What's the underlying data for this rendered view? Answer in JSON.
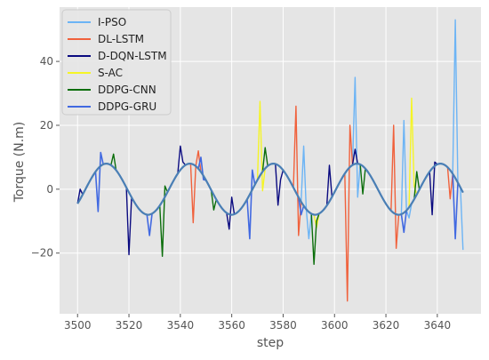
{
  "chart_data": {
    "type": "line",
    "title": "",
    "xlabel": "step",
    "ylabel": "Torque (N.m)",
    "xlim": [
      3493,
      3557
    ],
    "ylim": [
      -39,
      57
    ],
    "x_ticks": [
      "3500",
      "3520",
      "3540",
      "3560",
      "3580",
      "3600",
      "3620",
      "3640"
    ],
    "x_tick_values": [
      3500,
      3520,
      3540,
      3560,
      3580,
      3600,
      3620,
      3640
    ],
    "y_ticks": [
      "−20",
      "0",
      "20",
      "40"
    ],
    "y_tick_values": [
      -20,
      0,
      20,
      40
    ],
    "grid": true,
    "legend_position": "upper-left",
    "background": "#e5e5e5",
    "reference_curve": {
      "description": "sinusoid",
      "amplitude": 8,
      "period": 32.5,
      "x_start": 3500,
      "x_end": 3650,
      "y_at_start": -4.5
    },
    "series": [
      {
        "name": "I-PSO",
        "color": "#6cb4f5",
        "spikes": [
          [
            3588,
            13.5
          ],
          [
            3590,
            -15.5
          ],
          [
            3608,
            35
          ],
          [
            3609,
            -2.5
          ],
          [
            3627,
            21.5
          ],
          [
            3629,
            -9
          ],
          [
            3647,
            53
          ],
          [
            3650,
            -19
          ]
        ]
      },
      {
        "name": "DL-LSTM",
        "color": "#f0613c",
        "spikes": [
          [
            3545,
            -10.5
          ],
          [
            3547,
            12
          ],
          [
            3585,
            26
          ],
          [
            3586,
            -14.5
          ],
          [
            3605,
            -35
          ],
          [
            3606,
            20
          ],
          [
            3623,
            20
          ],
          [
            3624,
            -18.5
          ],
          [
            3645,
            -3
          ]
        ]
      },
      {
        "name": "D-DQN-LSTM",
        "color": "#0a0a80",
        "spikes": [
          [
            3501,
            0
          ],
          [
            3520,
            -20.5
          ],
          [
            3521,
            -3
          ],
          [
            3540,
            13.5
          ],
          [
            3541,
            8.5
          ],
          [
            3559,
            -12.5
          ],
          [
            3560,
            -2.5
          ],
          [
            3578,
            -5
          ],
          [
            3579,
            3
          ],
          [
            3598,
            7.5
          ],
          [
            3608,
            12.5
          ],
          [
            3638,
            -8
          ],
          [
            3639,
            8.5
          ]
        ]
      },
      {
        "name": "S-AC",
        "color": "#f5f526",
        "spikes": [
          [
            3571,
            27.5
          ],
          [
            3572,
            -0.5
          ],
          [
            3593,
            -12
          ],
          [
            3630,
            28.5
          ],
          [
            3631,
            1
          ]
        ]
      },
      {
        "name": "DDPG-CNN",
        "color": "#0b6e0b",
        "spikes": [
          [
            3514,
            11
          ],
          [
            3533,
            -21
          ],
          [
            3534,
            1
          ],
          [
            3553,
            -6.5
          ],
          [
            3573,
            13
          ],
          [
            3592,
            -23.5
          ],
          [
            3593,
            -10
          ],
          [
            3611,
            -1.5
          ],
          [
            3632,
            5.5
          ]
        ]
      },
      {
        "name": "DDPG-GRU",
        "color": "#4169e1",
        "spikes": [
          [
            3508,
            -7
          ],
          [
            3509,
            11.5
          ],
          [
            3528,
            -14.5
          ],
          [
            3548,
            10
          ],
          [
            3549,
            3
          ],
          [
            3567,
            -15.5
          ],
          [
            3568,
            6
          ],
          [
            3587,
            -8
          ],
          [
            3607,
            7.5
          ],
          [
            3627,
            -13.5
          ],
          [
            3647,
            -15.5
          ]
        ]
      }
    ]
  }
}
